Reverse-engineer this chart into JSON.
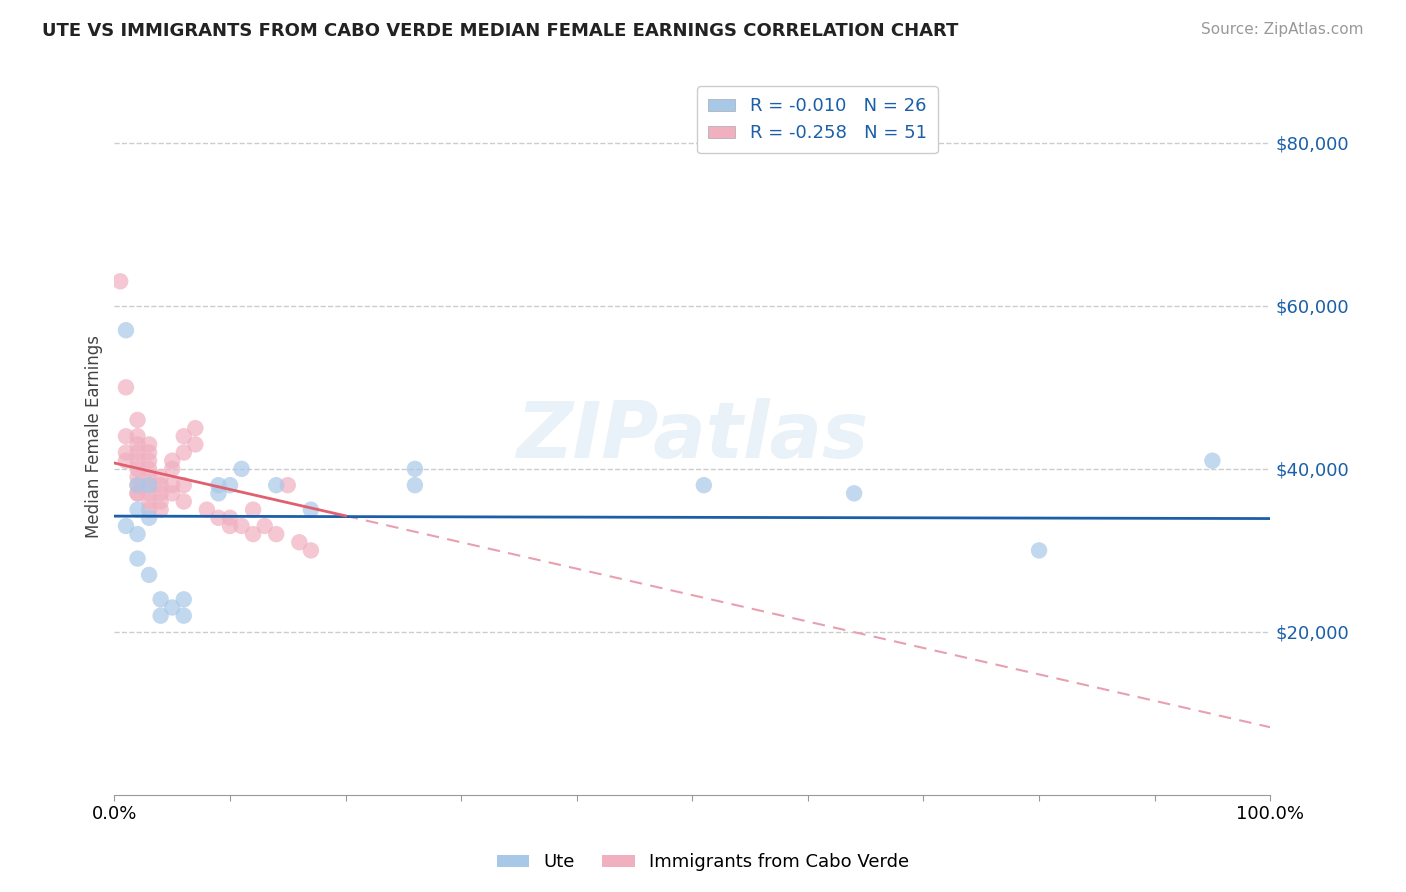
{
  "title": "UTE VS IMMIGRANTS FROM CABO VERDE MEDIAN FEMALE EARNINGS CORRELATION CHART",
  "source": "Source: ZipAtlas.com",
  "ylabel": "Median Female Earnings",
  "watermark": "ZIPatlas",
  "legend_blue_label": "Ute",
  "legend_pink_label": "Immigrants from Cabo Verde",
  "blue_R": -0.01,
  "blue_N": 26,
  "pink_R": -0.258,
  "pink_N": 51,
  "xlim": [
    0.0,
    1.0
  ],
  "ylim": [
    0,
    88000
  ],
  "yticks": [
    20000,
    40000,
    60000,
    80000
  ],
  "ytick_labels": [
    "$20,000",
    "$40,000",
    "$60,000",
    "$80,000"
  ],
  "xtick_labels": [
    "0.0%",
    "",
    "",
    "",
    "",
    "",
    "",
    "",
    "",
    "",
    "100.0%"
  ],
  "background_color": "#ffffff",
  "grid_color": "#cccccc",
  "blue_color": "#a8c8e8",
  "pink_color": "#f0b0c0",
  "blue_line_color": "#1a5fa8",
  "pink_line_solid_color": "#e06070",
  "pink_line_dash_color": "#e8a0b0",
  "blue_scatter": [
    [
      0.01,
      33000
    ],
    [
      0.01,
      57000
    ],
    [
      0.02,
      35000
    ],
    [
      0.02,
      38000
    ],
    [
      0.02,
      32000
    ],
    [
      0.02,
      29000
    ],
    [
      0.03,
      34000
    ],
    [
      0.03,
      38000
    ],
    [
      0.03,
      27000
    ],
    [
      0.04,
      22000
    ],
    [
      0.04,
      24000
    ],
    [
      0.05,
      23000
    ],
    [
      0.06,
      22000
    ],
    [
      0.06,
      24000
    ],
    [
      0.09,
      38000
    ],
    [
      0.09,
      37000
    ],
    [
      0.1,
      38000
    ],
    [
      0.11,
      40000
    ],
    [
      0.14,
      38000
    ],
    [
      0.17,
      35000
    ],
    [
      0.26,
      40000
    ],
    [
      0.26,
      38000
    ],
    [
      0.51,
      38000
    ],
    [
      0.64,
      37000
    ],
    [
      0.8,
      30000
    ],
    [
      0.95,
      41000
    ]
  ],
  "pink_scatter": [
    [
      0.005,
      63000
    ],
    [
      0.01,
      44000
    ],
    [
      0.01,
      50000
    ],
    [
      0.01,
      42000
    ],
    [
      0.01,
      41000
    ],
    [
      0.02,
      46000
    ],
    [
      0.02,
      44000
    ],
    [
      0.02,
      43000
    ],
    [
      0.02,
      42000
    ],
    [
      0.02,
      41000
    ],
    [
      0.02,
      40000
    ],
    [
      0.02,
      39000
    ],
    [
      0.02,
      38000
    ],
    [
      0.02,
      37000
    ],
    [
      0.02,
      37000
    ],
    [
      0.03,
      43000
    ],
    [
      0.03,
      42000
    ],
    [
      0.03,
      41000
    ],
    [
      0.03,
      40000
    ],
    [
      0.03,
      39000
    ],
    [
      0.03,
      38000
    ],
    [
      0.03,
      37000
    ],
    [
      0.03,
      36000
    ],
    [
      0.03,
      35000
    ],
    [
      0.04,
      39000
    ],
    [
      0.04,
      38000
    ],
    [
      0.04,
      37000
    ],
    [
      0.04,
      36000
    ],
    [
      0.04,
      35000
    ],
    [
      0.05,
      41000
    ],
    [
      0.05,
      40000
    ],
    [
      0.05,
      38000
    ],
    [
      0.05,
      37000
    ],
    [
      0.06,
      44000
    ],
    [
      0.06,
      42000
    ],
    [
      0.06,
      38000
    ],
    [
      0.06,
      36000
    ],
    [
      0.07,
      45000
    ],
    [
      0.07,
      43000
    ],
    [
      0.08,
      35000
    ],
    [
      0.09,
      34000
    ],
    [
      0.1,
      34000
    ],
    [
      0.1,
      33000
    ],
    [
      0.11,
      33000
    ],
    [
      0.12,
      35000
    ],
    [
      0.12,
      32000
    ],
    [
      0.13,
      33000
    ],
    [
      0.14,
      32000
    ],
    [
      0.15,
      38000
    ],
    [
      0.16,
      31000
    ],
    [
      0.17,
      30000
    ]
  ]
}
